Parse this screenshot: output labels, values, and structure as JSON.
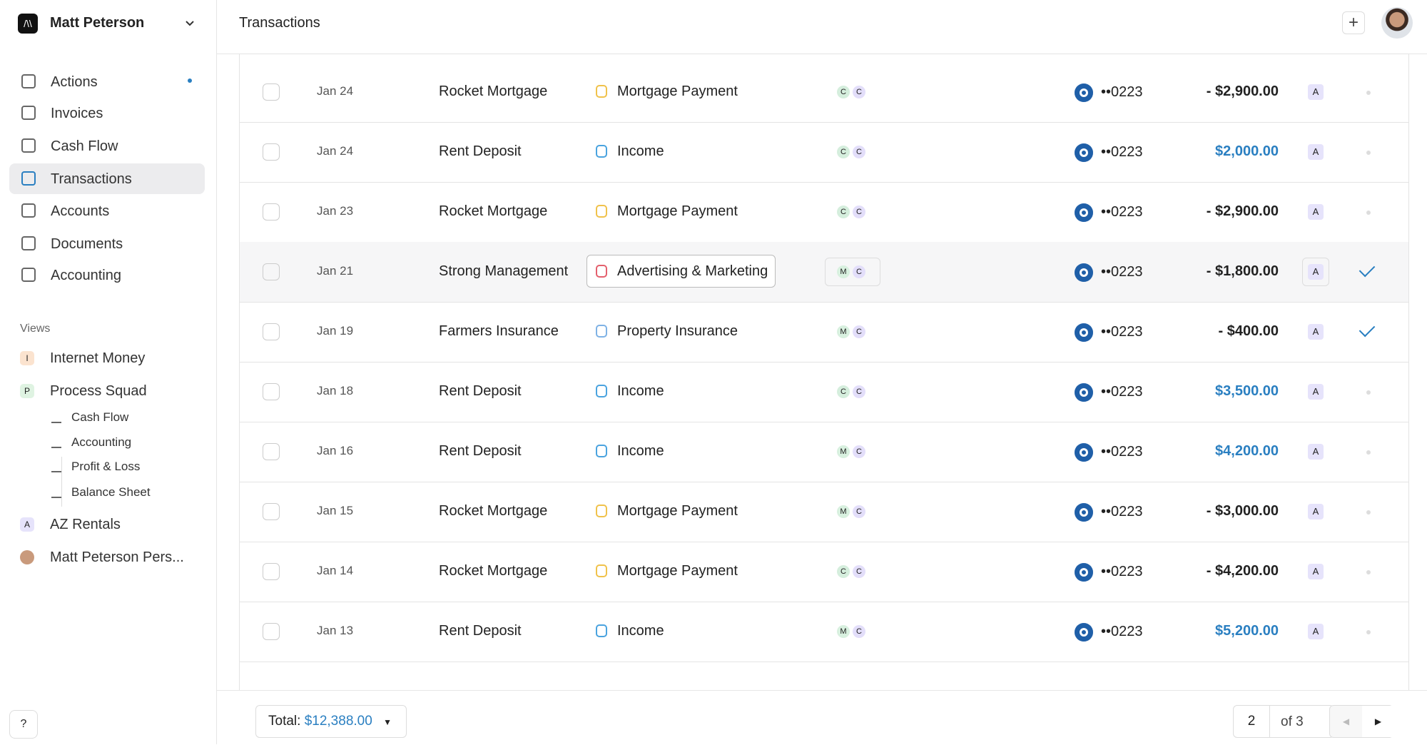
{
  "sidebar": {
    "org": "Matt Peterson",
    "nav": [
      "Actions",
      "Invoices",
      "Cash Flow",
      "Transactions",
      "Accounts",
      "Documents",
      "Accounting"
    ],
    "active": 3,
    "views_label": "Views",
    "views": [
      {
        "badge": "I",
        "label": "Internet Money",
        "color": "#fbe3cf",
        "level": 0
      },
      {
        "badge": "P",
        "label": "Process Squad",
        "color": "#dff3e2",
        "level": 0
      },
      {
        "label": "Cash Flow",
        "level": 1
      },
      {
        "label": "Accounting",
        "level": 1
      },
      {
        "label": "Profit & Loss",
        "level": 2
      },
      {
        "label": "Balance Sheet",
        "level": 2
      },
      {
        "badge": "A",
        "label": "AZ Rentals",
        "color": "#e6e3fb",
        "level": 0
      },
      {
        "label": "Matt Peterson Pers...",
        "level": 0,
        "avatar": true
      }
    ]
  },
  "header": {
    "title": "Transactions"
  },
  "table": {
    "rows": [
      {
        "date": "Jan 24",
        "name": "Rocket Mortgage",
        "category": "Mortgage Payment",
        "category_color": "#f0c24b",
        "people": [
          "C",
          "C"
        ],
        "account": "••0223",
        "amount": "- $2,900.00",
        "amount_color": "#222",
        "tag": "A",
        "reviewed": false
      },
      {
        "date": "Jan 24",
        "name": "Rent Deposit",
        "category": "Income",
        "category_color": "#4aa3df",
        "people": [
          "C",
          "C"
        ],
        "account": "••0223",
        "amount": "$2,000.00",
        "amount_color": "#2a7fc1",
        "tag": "A",
        "reviewed": false
      },
      {
        "date": "Jan 23",
        "name": "Rocket Mortgage",
        "category": "Mortgage Payment",
        "category_color": "#f0c24b",
        "people": [
          "C",
          "C"
        ],
        "account": "••0223",
        "amount": "- $2,900.00",
        "amount_color": "#222",
        "tag": "A",
        "reviewed": false
      },
      {
        "date": "Jan 21",
        "name": "Strong Management",
        "category": "Advertising & Marketing",
        "category_color": "#e4606d",
        "people": [
          "M",
          "C"
        ],
        "account": "••0223",
        "amount": "- $1,800.00",
        "amount_color": "#222",
        "tag": "A",
        "reviewed": true,
        "highlighted": true
      },
      {
        "date": "Jan 19",
        "name": "Farmers Insurance",
        "category": "Property Insurance",
        "category_color": "#7fb2e5",
        "people": [
          "M",
          "C"
        ],
        "account": "••0223",
        "amount": "- $400.00",
        "amount_color": "#222",
        "tag": "A",
        "reviewed": true
      },
      {
        "date": "Jan 18",
        "name": "Rent Deposit",
        "category": "Income",
        "category_color": "#4aa3df",
        "people": [
          "C",
          "C"
        ],
        "account": "••0223",
        "amount": "$3,500.00",
        "amount_color": "#2a7fc1",
        "tag": "A",
        "reviewed": false
      },
      {
        "date": "Jan 16",
        "name": "Rent Deposit",
        "category": "Income",
        "category_color": "#4aa3df",
        "people": [
          "M",
          "C"
        ],
        "account": "••0223",
        "amount": "$4,200.00",
        "amount_color": "#2a7fc1",
        "tag": "A",
        "reviewed": false
      },
      {
        "date": "Jan 15",
        "name": "Rocket Mortgage",
        "category": "Mortgage Payment",
        "category_color": "#f0c24b",
        "people": [
          "M",
          "C"
        ],
        "account": "••0223",
        "amount": "- $3,000.00",
        "amount_color": "#222",
        "tag": "A",
        "reviewed": false
      },
      {
        "date": "Jan 14",
        "name": "Rocket Mortgage",
        "category": "Mortgage Payment",
        "category_color": "#f0c24b",
        "people": [
          "C",
          "C"
        ],
        "account": "••0223",
        "amount": "- $4,200.00",
        "amount_color": "#222",
        "tag": "A",
        "reviewed": false
      },
      {
        "date": "Jan 13",
        "name": "Rent Deposit",
        "category": "Income",
        "category_color": "#4aa3df",
        "people": [
          "M",
          "C"
        ],
        "account": "••0223",
        "amount": "$5,200.00",
        "amount_color": "#2a7fc1",
        "tag": "A",
        "reviewed": false
      }
    ]
  },
  "footer": {
    "total_label": "Total:",
    "total": "$12,388.00",
    "page": "2",
    "of": "of 3"
  }
}
